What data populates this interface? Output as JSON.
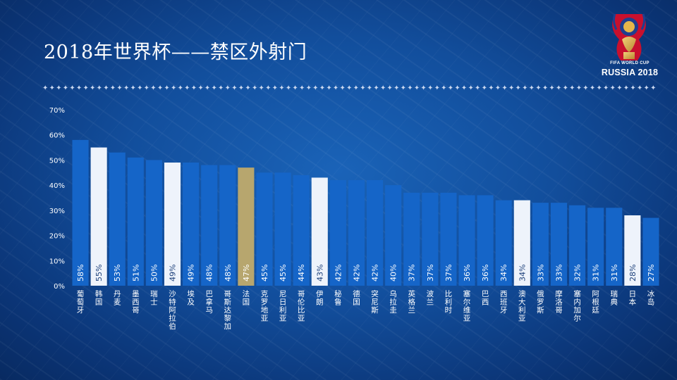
{
  "page": {
    "title": "2018年世界杯——禁区外射门",
    "divider": "✦✦✦✦✦✦✦✦✦✦✦✦✦✦✦✦✦✦✦✦✦✦✦✦✦✦✦✦✦✦✦✦✦✦✦✦✦✦✦✦✦✦✦✦✦✦✦✦✦✦✦✦✦✦✦✦✦✦✦✦✦✦✦✦✦✦✦✦✦✦✦✦✦✦✦✦✦✦✦✦✦✦✦✦✦✦✦✦✦✦✦✦✦✦✦✦"
  },
  "logo": {
    "icon": "world-cup-trophy-icon",
    "line1": "FIFA WORLD CUP",
    "line2": "RUSSIA 2018"
  },
  "colors": {
    "bar_default": "#1565c8",
    "bar_highlight": "#eef3fb",
    "bar_gold": "#b7a66e",
    "background": "#124e9c"
  },
  "chart_data": {
    "type": "bar",
    "title": "2018年世界杯——禁区外射门",
    "xlabel": "",
    "ylabel": "",
    "ylim": [
      0,
      70
    ],
    "yticks": [
      "0%",
      "10%",
      "20%",
      "30%",
      "40%",
      "50%",
      "60%",
      "70%"
    ],
    "grid": false,
    "categories": [
      "葡萄牙",
      "韩国",
      "丹麦",
      "墨西哥",
      "瑞士",
      "沙特阿拉伯",
      "埃及",
      "巴拿马",
      "哥斯达黎加",
      "法国",
      "克罗地亚",
      "尼日利亚",
      "哥伦比亚",
      "伊朗",
      "秘鲁",
      "德国",
      "突尼斯",
      "乌拉圭",
      "英格兰",
      "波兰",
      "比利时",
      "塞尔维亚",
      "巴西",
      "西班牙",
      "澳大利亚",
      "俄罗斯",
      "摩洛哥",
      "塞内加尔",
      "阿根廷",
      "瑞典",
      "日本",
      "冰岛"
    ],
    "values": [
      58,
      55,
      53,
      51,
      50,
      49,
      49,
      48,
      48,
      47,
      45,
      45,
      44,
      43,
      42,
      42,
      42,
      40,
      37,
      37,
      37,
      36,
      36,
      34,
      34,
      33,
      33,
      32,
      31,
      31,
      28,
      27
    ],
    "value_labels": [
      "58%",
      "55%",
      "53%",
      "51%",
      "50%",
      "49%",
      "49%",
      "48%",
      "48%",
      "47%",
      "45%",
      "45%",
      "44%",
      "43%",
      "42%",
      "42%",
      "42%",
      "40%",
      "37%",
      "37%",
      "37%",
      "36%",
      "36%",
      "34%",
      "34%",
      "33%",
      "33%",
      "32%",
      "31%",
      "31%",
      "28%",
      "27%"
    ],
    "highlight": [
      "default",
      "highlight",
      "default",
      "default",
      "default",
      "highlight",
      "default",
      "default",
      "default",
      "gold",
      "default",
      "default",
      "default",
      "highlight",
      "default",
      "default",
      "default",
      "default",
      "default",
      "default",
      "default",
      "default",
      "default",
      "default",
      "highlight",
      "default",
      "default",
      "default",
      "default",
      "default",
      "highlight",
      "default"
    ]
  }
}
